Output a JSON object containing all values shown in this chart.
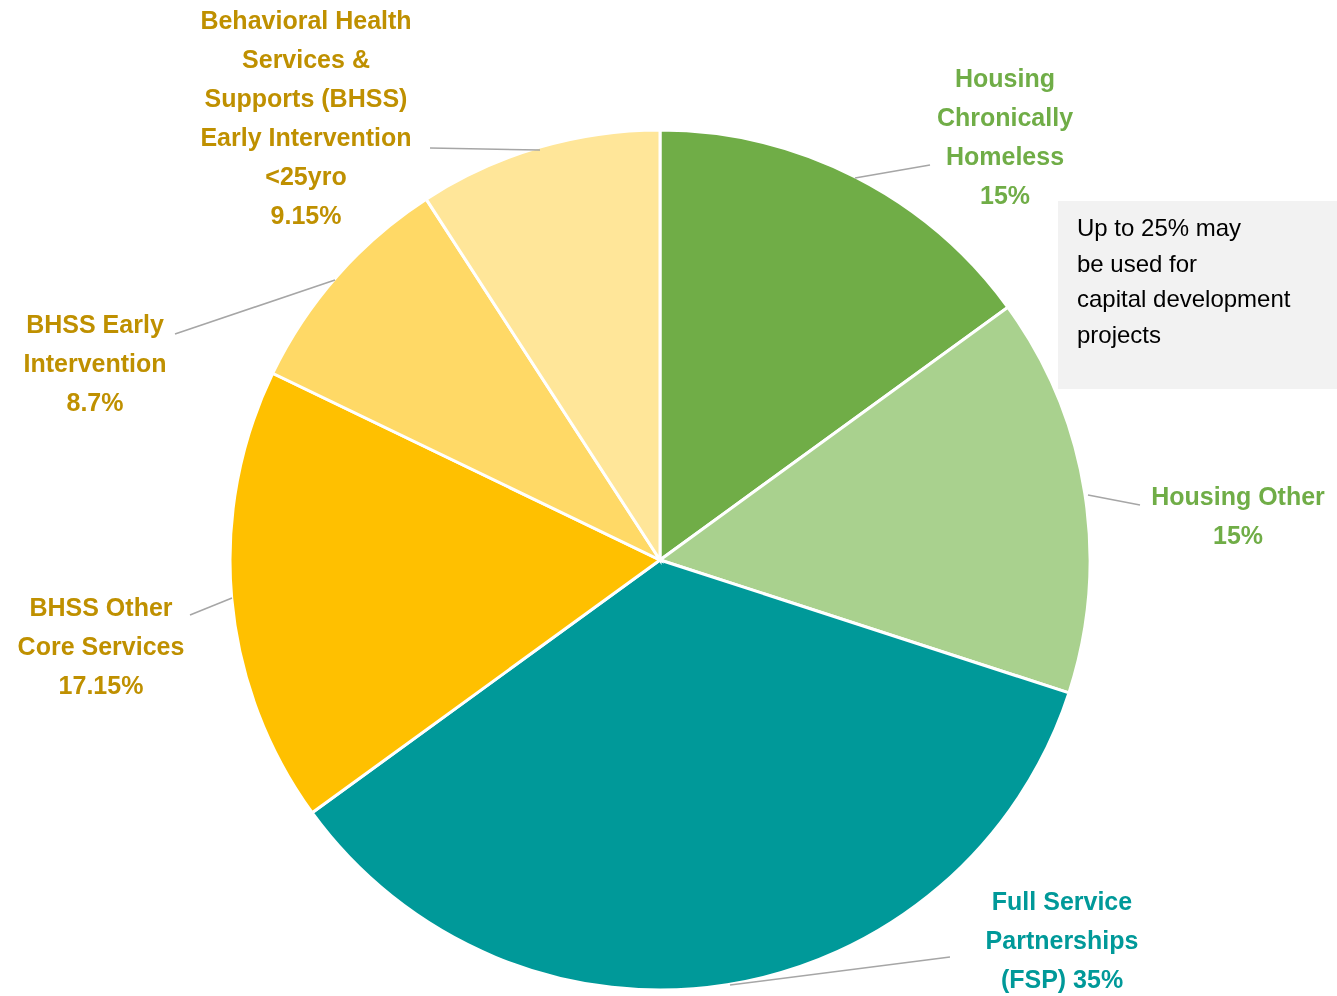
{
  "chart_data": {
    "type": "pie",
    "categories": [
      "Housing Chronically Homeless",
      "Housing Other",
      "Full Service Partnerships (FSP)",
      "BHSS Other Core Services",
      "BHSS Early Intervention",
      "Behavioral Health Services & Supports (BHSS) Early Intervention <25yro"
    ],
    "values": [
      15,
      15,
      35,
      17.15,
      8.7,
      9.15
    ],
    "colors": [
      "#70ad47",
      "#a9d18e",
      "#009999",
      "#ffc000",
      "#ffd966",
      "#ffe699"
    ],
    "value_labels": [
      "15%",
      "15%",
      "35%",
      "17.15%",
      "8.7%",
      "9.15%"
    ],
    "annotations": [
      "Up to 25% may be used for capital development projects"
    ],
    "legend": false
  }
}
